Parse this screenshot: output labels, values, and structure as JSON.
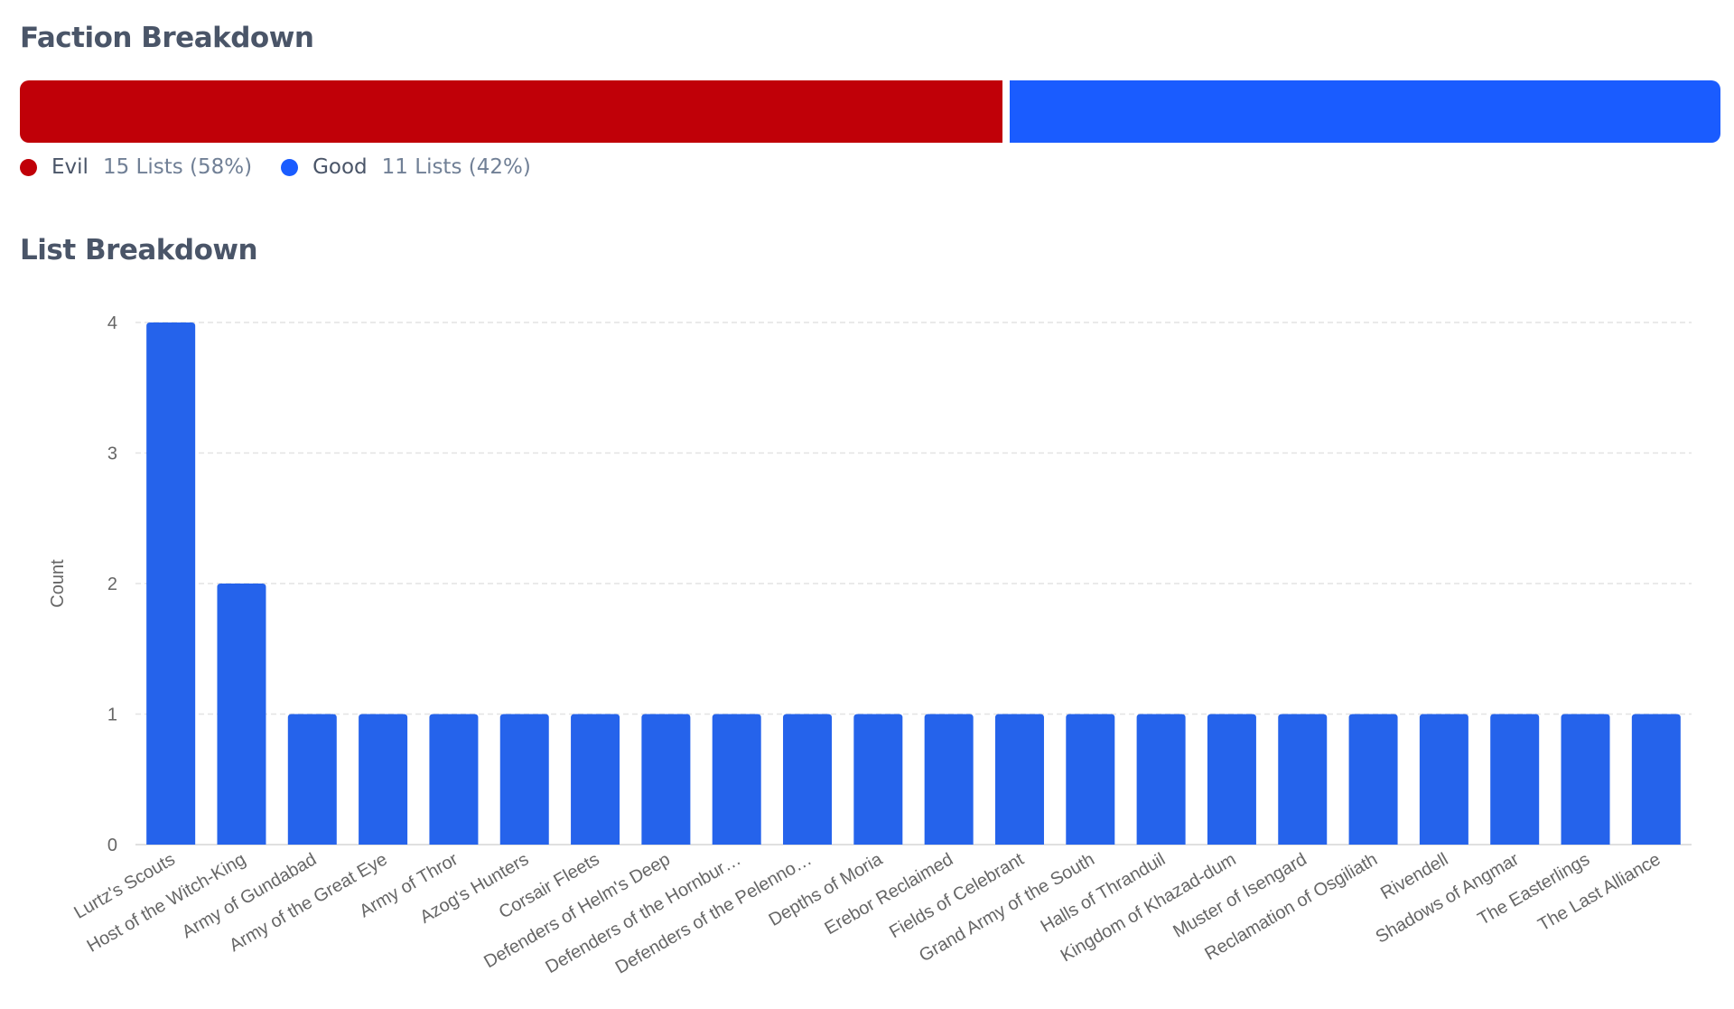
{
  "faction": {
    "title": "Faction Breakdown",
    "segments": [
      {
        "name": "Evil",
        "detail": "15 Lists (58%)",
        "share": 58,
        "color": "#c00008"
      },
      {
        "name": "Good",
        "detail": "11 Lists (42%)",
        "share": 42,
        "color": "#1a5cff"
      }
    ]
  },
  "list": {
    "title": "List Breakdown"
  },
  "chart_data": {
    "type": "bar",
    "ylabel": "Count",
    "xlabel": "",
    "ylim": [
      0,
      4
    ],
    "yticks": [
      "0",
      "1",
      "2",
      "3",
      "4"
    ],
    "grid": true,
    "color": "#2563eb",
    "categories": [
      "Lurtz's Scouts",
      "Host of the Witch-King",
      "Army of Gundabad",
      "Army of the Great Eye",
      "Army of Thror",
      "Azog's Hunters",
      "Corsair Fleets",
      "Defenders of Helm's Deep",
      "Defenders of the Hornbur…",
      "Defenders of the Pelenno…",
      "Depths of Moria",
      "Erebor Reclaimed",
      "Fields of Celebrant",
      "Grand Army of the South",
      "Halls of Thranduil",
      "Kingdom of Khazad-dum",
      "Muster of Isengard",
      "Reclamation of Osgiliath",
      "Rivendell",
      "Shadows of Angmar",
      "The Easterlings",
      "The Last Alliance"
    ],
    "values": [
      4,
      2,
      1,
      1,
      1,
      1,
      1,
      1,
      1,
      1,
      1,
      1,
      1,
      1,
      1,
      1,
      1,
      1,
      1,
      1,
      1,
      1
    ]
  }
}
